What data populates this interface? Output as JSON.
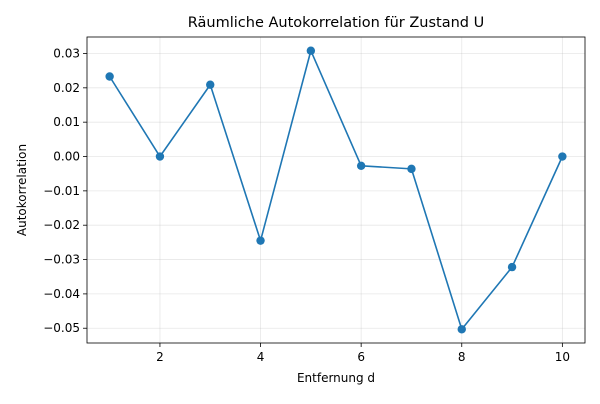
{
  "chart_data": {
    "type": "line",
    "title": "Räumliche Autokorrelation für Zustand U",
    "xlabel": "Entfernung d",
    "ylabel": "Autokorrelation",
    "x": [
      1,
      2,
      3,
      4,
      5,
      6,
      7,
      8,
      9,
      10
    ],
    "series": [
      {
        "values": [
          0.0233,
          0.0,
          0.0209,
          -0.0245,
          0.0308,
          -0.0027,
          -0.0036,
          -0.0503,
          -0.0322,
          0.0
        ],
        "color": "#1f77b4",
        "marker": "circle"
      }
    ],
    "xlim": [
      0.55,
      10.45
    ],
    "ylim": [
      -0.0543,
      0.0348
    ],
    "xticks": [
      2,
      4,
      6,
      8,
      10
    ],
    "xtick_labels": [
      "2",
      "4",
      "6",
      "8",
      "10"
    ],
    "yticks": [
      0.03,
      0.02,
      0.01,
      0.0,
      -0.01,
      -0.02,
      -0.03,
      -0.04,
      -0.05
    ],
    "ytick_labels": [
      "0.03",
      "0.02",
      "0.01",
      "0.00",
      "−0.01",
      "−0.02",
      "−0.03",
      "−0.04",
      "−0.05"
    ],
    "grid": true
  }
}
